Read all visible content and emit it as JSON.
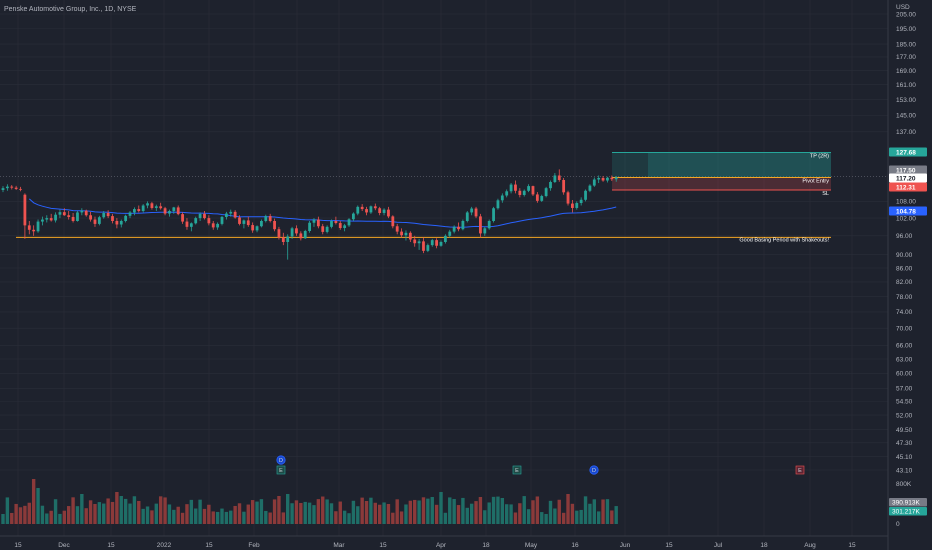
{
  "header": {
    "title": "Penske Automotive Group, Inc., 1D, NYSE",
    "currency": "USD"
  },
  "chart_data": {
    "type": "candlestick",
    "price_axis": {
      "scale": "log",
      "ticks": [
        205.0,
        195.0,
        185.0,
        177.0,
        169.0,
        161.0,
        153.0,
        145.0,
        137.0,
        108.0,
        102.0,
        96.0,
        90.0,
        86.0,
        82.0,
        78.0,
        74.0,
        70.0,
        66.0,
        63.0,
        60.0,
        57.0,
        54.5,
        52.0,
        49.5,
        47.3,
        45.1,
        43.1
      ],
      "tick_labels": [
        "205.00",
        "195.00",
        "185.00",
        "177.00",
        "169.00",
        "161.00",
        "153.00",
        "145.00",
        "137.00",
        "108.00",
        "102.00",
        "96.00",
        "90.00",
        "86.00",
        "82.00",
        "78.00",
        "74.00",
        "70.00",
        "66.00",
        "63.00",
        "60.00",
        "57.00",
        "54.50",
        "52.00",
        "49.50",
        "47.30",
        "45.10",
        "43.10"
      ]
    },
    "time_axis": {
      "labels": [
        "15",
        "Dec",
        "15",
        "2022",
        "15",
        "Feb",
        "15",
        "Mar",
        "15",
        "Apr",
        "18",
        "May",
        "16",
        "Jun",
        "15",
        "Jul",
        "18",
        "Aug",
        "15"
      ]
    },
    "price_badges": [
      {
        "label": "127.68",
        "value": 127.68,
        "color": "#26a69a"
      },
      {
        "label": "117.50",
        "value": 117.5,
        "color": "#787b86"
      },
      {
        "label": "117.20",
        "value": 117.2,
        "color": "#ffffff"
      },
      {
        "label": "112.31",
        "value": 112.31,
        "color": "#ef5350"
      },
      {
        "label": "104.78",
        "value": 104.78,
        "color": "#2962ff"
      }
    ],
    "position_tool": {
      "entry": 117.2,
      "target": 127.68,
      "stop": 112.31,
      "target_label": "TP (2R)",
      "entry_label": "Pivot Entry",
      "stop_label": "SL"
    },
    "basing_line": {
      "value": 95.5,
      "label": "Good Basing Period with Shakeouts!",
      "color": "#f5a623"
    },
    "ohlc": [
      [
        112.3,
        113.8,
        111.5,
        113.0
      ],
      [
        113.0,
        114.5,
        112.0,
        113.6
      ],
      [
        113.6,
        114.2,
        112.5,
        113.2
      ],
      [
        113.2,
        113.9,
        112.3,
        112.7
      ],
      [
        112.7,
        113.5,
        111.8,
        112.5
      ],
      [
        110.5,
        111.0,
        95.0,
        99.5
      ],
      [
        99.5,
        101.0,
        96.5,
        98.0
      ],
      [
        98.0,
        99.5,
        96.0,
        97.5
      ],
      [
        97.5,
        101.5,
        97.0,
        100.8
      ],
      [
        100.8,
        102.5,
        99.5,
        101.5
      ],
      [
        101.5,
        103.0,
        100.5,
        102.0
      ],
      [
        102.0,
        103.5,
        100.8,
        101.2
      ],
      [
        101.2,
        104.0,
        100.5,
        103.2
      ],
      [
        103.2,
        105.0,
        102.0,
        104.1
      ],
      [
        104.1,
        105.5,
        102.8,
        103.0
      ],
      [
        103.0,
        104.5,
        101.5,
        102.4
      ],
      [
        102.4,
        103.8,
        100.5,
        101.0
      ],
      [
        101.0,
        104.5,
        100.8,
        104.0
      ],
      [
        104.0,
        105.5,
        103.0,
        104.6
      ],
      [
        104.6,
        105.0,
        102.5,
        103.0
      ],
      [
        103.0,
        104.2,
        100.8,
        101.5
      ],
      [
        101.5,
        102.5,
        99.0,
        100.0
      ],
      [
        100.0,
        102.8,
        99.5,
        102.3
      ],
      [
        102.3,
        104.5,
        101.8,
        103.8
      ],
      [
        103.8,
        104.8,
        102.0,
        102.7
      ],
      [
        102.7,
        103.5,
        100.2,
        101.0
      ],
      [
        101.0,
        102.0,
        98.5,
        99.8
      ],
      [
        99.8,
        101.5,
        98.8,
        101.0
      ],
      [
        101.0,
        103.2,
        100.5,
        102.8
      ],
      [
        102.8,
        104.5,
        102.0,
        104.0
      ],
      [
        104.0,
        105.8,
        103.0,
        105.2
      ],
      [
        105.2,
        106.5,
        104.0,
        104.5
      ],
      [
        104.5,
        107.0,
        104.0,
        106.5
      ],
      [
        106.5,
        108.0,
        105.5,
        107.3
      ],
      [
        107.3,
        107.8,
        105.0,
        105.6
      ],
      [
        105.6,
        106.8,
        104.5,
        106.2
      ],
      [
        106.2,
        107.5,
        105.0,
        105.5
      ],
      [
        105.5,
        106.0,
        103.0,
        103.6
      ],
      [
        103.6,
        105.0,
        102.5,
        104.5
      ],
      [
        104.5,
        106.0,
        103.5,
        105.8
      ],
      [
        105.8,
        106.5,
        103.0,
        103.4
      ],
      [
        103.4,
        104.0,
        100.0,
        100.8
      ],
      [
        100.8,
        102.0,
        98.0,
        99.0
      ],
      [
        99.0,
        100.5,
        97.5,
        100.2
      ],
      [
        100.2,
        102.5,
        99.8,
        102.0
      ],
      [
        102.0,
        104.0,
        101.0,
        103.5
      ],
      [
        103.5,
        104.5,
        101.5,
        102.0
      ],
      [
        102.0,
        103.0,
        99.5,
        100.2
      ],
      [
        100.2,
        101.0,
        98.0,
        98.8
      ],
      [
        98.8,
        100.5,
        98.0,
        100.0
      ],
      [
        100.0,
        102.8,
        99.5,
        102.4
      ],
      [
        102.4,
        104.2,
        101.5,
        103.6
      ],
      [
        103.6,
        105.0,
        102.5,
        104.2
      ],
      [
        104.2,
        104.8,
        101.8,
        102.2
      ],
      [
        102.2,
        103.0,
        99.5,
        100.0
      ],
      [
        100.0,
        101.5,
        98.5,
        101.2
      ],
      [
        101.2,
        102.5,
        99.0,
        99.6
      ],
      [
        99.6,
        100.5,
        97.0,
        97.8
      ],
      [
        97.8,
        99.5,
        97.2,
        99.2
      ],
      [
        99.2,
        101.5,
        98.8,
        101.0
      ],
      [
        101.0,
        103.2,
        100.5,
        102.7
      ],
      [
        102.7,
        103.5,
        100.5,
        101.0
      ],
      [
        101.0,
        101.8,
        97.5,
        98.2
      ],
      [
        98.2,
        99.0,
        94.8,
        95.5
      ],
      [
        95.5,
        97.0,
        93.0,
        94.0
      ],
      [
        94.0,
        96.5,
        88.5,
        95.8
      ],
      [
        95.8,
        99.0,
        95.0,
        98.5
      ],
      [
        98.5,
        99.5,
        96.0,
        96.8
      ],
      [
        96.8,
        97.5,
        94.5,
        95.2
      ],
      [
        95.2,
        98.0,
        95.0,
        97.6
      ],
      [
        97.6,
        101.0,
        97.0,
        100.4
      ],
      [
        100.4,
        102.0,
        99.0,
        101.5
      ],
      [
        101.5,
        102.5,
        98.5,
        99.2
      ],
      [
        99.2,
        100.0,
        96.5,
        97.3
      ],
      [
        97.3,
        99.5,
        96.8,
        99.0
      ],
      [
        99.0,
        101.5,
        98.5,
        101.0
      ],
      [
        101.0,
        102.5,
        99.8,
        100.3
      ],
      [
        100.3,
        101.0,
        98.0,
        98.6
      ],
      [
        98.6,
        100.0,
        97.5,
        99.5
      ],
      [
        99.5,
        102.0,
        99.0,
        101.6
      ],
      [
        101.6,
        104.0,
        101.0,
        103.6
      ],
      [
        103.6,
        106.5,
        103.0,
        106.0
      ],
      [
        106.0,
        107.0,
        104.5,
        105.2
      ],
      [
        105.2,
        106.0,
        103.0,
        104.0
      ],
      [
        104.0,
        106.5,
        103.5,
        106.2
      ],
      [
        106.2,
        107.2,
        104.8,
        105.5
      ],
      [
        105.5,
        106.0,
        103.0,
        103.8
      ],
      [
        103.8,
        105.5,
        103.0,
        105.0
      ],
      [
        105.0,
        106.0,
        102.0,
        102.6
      ],
      [
        102.6,
        103.0,
        98.5,
        99.2
      ],
      [
        99.2,
        100.0,
        96.5,
        97.4
      ],
      [
        97.4,
        98.5,
        95.5,
        96.2
      ],
      [
        96.2,
        97.8,
        94.5,
        97.0
      ],
      [
        97.0,
        97.5,
        94.0,
        94.8
      ],
      [
        94.8,
        96.0,
        92.5,
        93.6
      ],
      [
        93.6,
        95.0,
        91.5,
        94.2
      ],
      [
        94.2,
        95.5,
        90.5,
        91.2
      ],
      [
        91.2,
        93.5,
        90.8,
        93.0
      ],
      [
        93.0,
        95.0,
        92.5,
        94.6
      ],
      [
        94.6,
        95.2,
        92.0,
        92.8
      ],
      [
        92.8,
        94.5,
        92.5,
        94.0
      ],
      [
        94.0,
        96.5,
        93.5,
        96.0
      ],
      [
        96.0,
        98.0,
        95.5,
        97.4
      ],
      [
        97.4,
        99.5,
        96.8,
        99.0
      ],
      [
        99.0,
        100.5,
        97.5,
        98.2
      ],
      [
        98.2,
        101.5,
        97.8,
        101.0
      ],
      [
        101.0,
        104.5,
        100.5,
        104.0
      ],
      [
        104.0,
        106.0,
        103.0,
        105.4
      ],
      [
        105.4,
        106.0,
        102.0,
        102.6
      ],
      [
        102.6,
        103.5,
        95.5,
        96.8
      ],
      [
        96.8,
        99.0,
        96.0,
        98.5
      ],
      [
        98.5,
        101.5,
        98.0,
        101.0
      ],
      [
        101.0,
        106.0,
        100.5,
        105.5
      ],
      [
        105.5,
        109.0,
        105.0,
        108.4
      ],
      [
        108.4,
        111.0,
        107.5,
        110.2
      ],
      [
        110.2,
        112.5,
        109.5,
        111.8
      ],
      [
        111.8,
        115.0,
        111.0,
        114.4
      ],
      [
        114.4,
        116.0,
        111.0,
        112.0
      ],
      [
        112.0,
        113.0,
        109.5,
        110.4
      ],
      [
        110.4,
        112.5,
        109.8,
        112.0
      ],
      [
        112.0,
        114.5,
        111.5,
        113.8
      ],
      [
        113.8,
        114.0,
        110.0,
        110.6
      ],
      [
        110.6,
        111.5,
        107.5,
        108.2
      ],
      [
        108.2,
        110.5,
        107.8,
        110.0
      ],
      [
        110.0,
        113.5,
        109.5,
        113.0
      ],
      [
        113.0,
        116.0,
        112.0,
        115.4
      ],
      [
        115.4,
        119.0,
        115.0,
        118.0
      ],
      [
        118.0,
        120.5,
        115.5,
        116.2
      ],
      [
        116.2,
        117.0,
        110.5,
        111.4
      ],
      [
        111.4,
        112.0,
        106.5,
        107.2
      ],
      [
        107.2,
        108.5,
        104.0,
        105.6
      ],
      [
        105.6,
        108.0,
        105.0,
        107.4
      ],
      [
        107.4,
        109.5,
        106.5,
        108.6
      ],
      [
        108.6,
        112.5,
        108.0,
        112.0
      ],
      [
        112.0,
        114.5,
        111.5,
        114.0
      ],
      [
        114.0,
        117.2,
        113.5,
        116.4
      ],
      [
        116.4,
        118.0,
        115.0,
        117.0
      ],
      [
        117.0,
        117.8,
        115.5,
        116.0
      ],
      [
        116.0,
        117.5,
        115.2,
        117.1
      ],
      [
        117.1,
        118.0,
        115.8,
        116.5
      ],
      [
        116.5,
        117.8,
        115.5,
        117.2
      ]
    ],
    "volume": {
      "axis_labels": [
        "800K",
        "0"
      ],
      "badges": [
        {
          "label": "390.913K",
          "color": "#787b86"
        },
        {
          "label": "301.217K",
          "color": "#26a69a"
        }
      ]
    },
    "events": [
      {
        "label": "D",
        "kind": "dividend"
      },
      {
        "label": "E",
        "kind": "earnings"
      },
      {
        "label": "E",
        "kind": "earnings"
      },
      {
        "label": "D",
        "kind": "dividend"
      },
      {
        "label": "E",
        "kind": "earnings"
      }
    ],
    "colors": {
      "up": "#26a69a",
      "down": "#ef5350",
      "ma": "#2962ff",
      "bg": "#1e222d",
      "grid": "#2a2e39"
    }
  }
}
